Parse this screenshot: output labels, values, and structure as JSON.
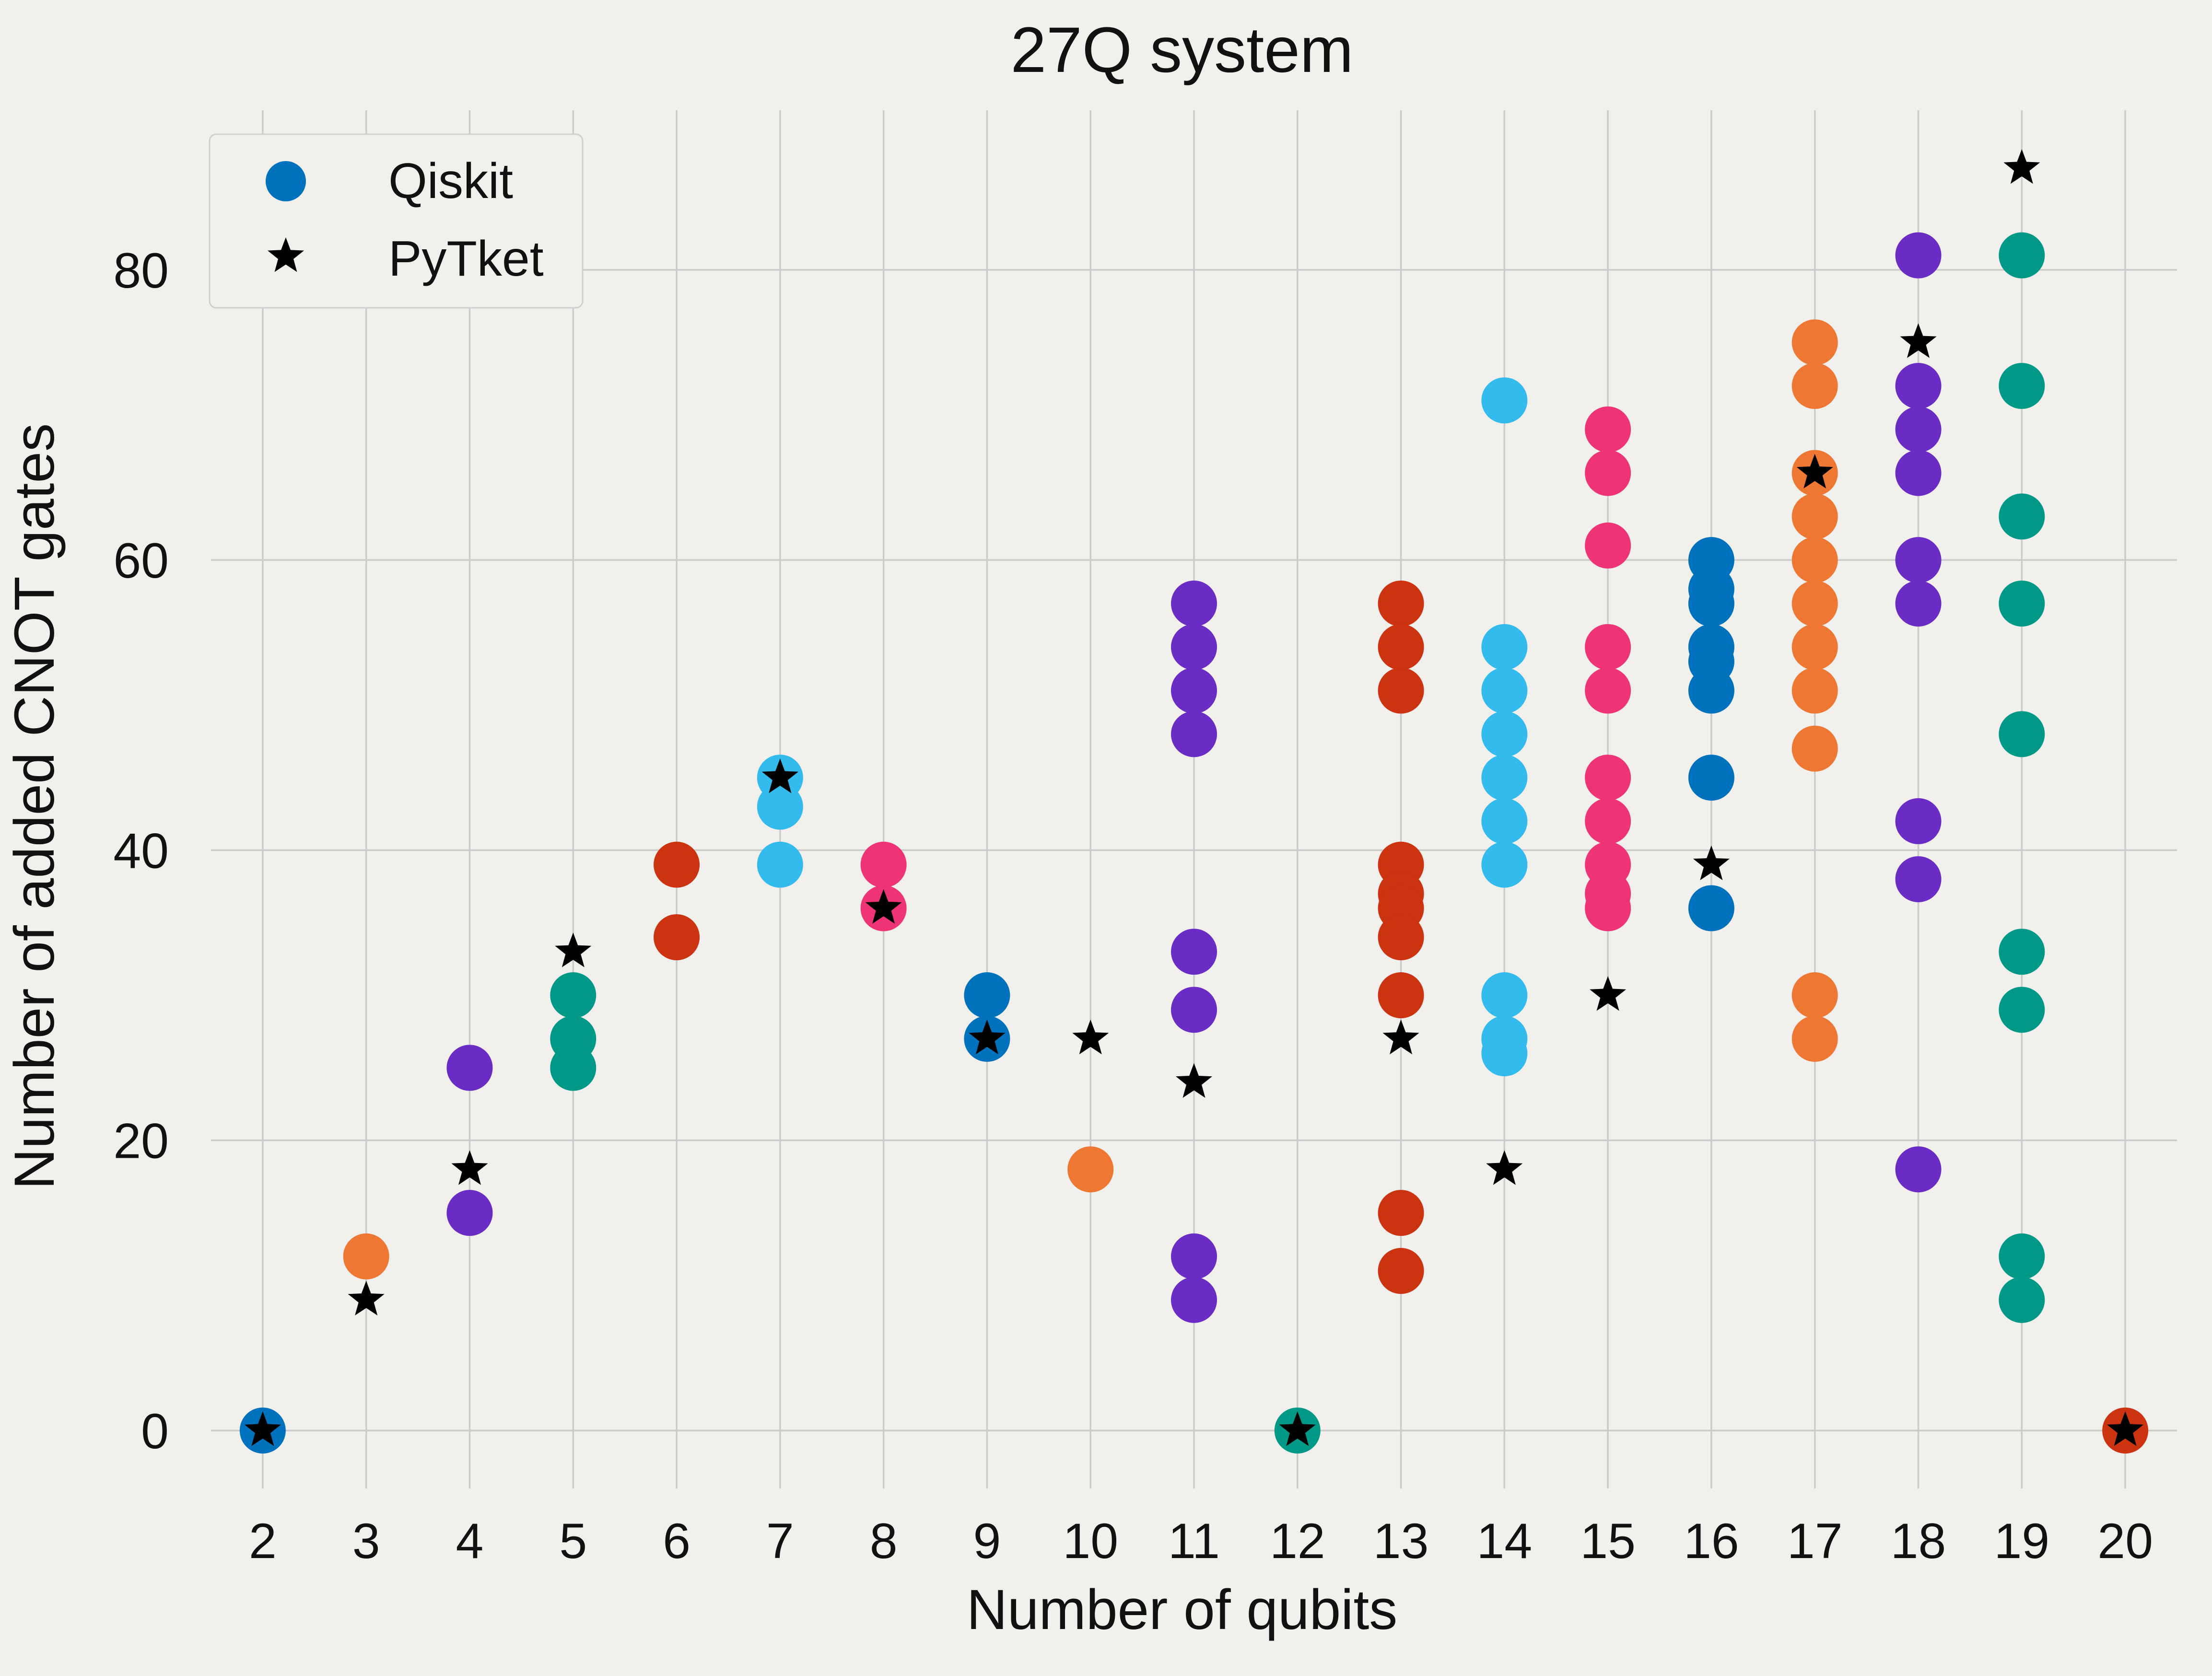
{
  "chart_data": {
    "type": "scatter",
    "title": "27Q system",
    "xlabel": "Number of qubits",
    "ylabel": "Number of added CNOT gates",
    "xlim": [
      1.5,
      20.5
    ],
    "ylim": [
      -4,
      91
    ],
    "xticks": [
      2,
      3,
      4,
      5,
      6,
      7,
      8,
      9,
      10,
      11,
      12,
      13,
      14,
      15,
      16,
      17,
      18,
      19,
      20
    ],
    "xtick_labels": [
      "2",
      "3",
      "4",
      "5",
      "6",
      "7",
      "8",
      "9",
      "10",
      "11",
      "12",
      "13",
      "14",
      "15",
      "16",
      "17",
      "18",
      "19",
      "20"
    ],
    "yticks": [
      0,
      20,
      40,
      60,
      80
    ],
    "ytick_labels": [
      "0",
      "20",
      "40",
      "60",
      "80"
    ],
    "grid": true,
    "legend_position": "top-left",
    "legend": [
      {
        "label": "Qiskit",
        "marker": "circle",
        "color": "#0072bd"
      },
      {
        "label": "PyTket",
        "marker": "star",
        "color": "#000000"
      }
    ],
    "series": [
      {
        "name": "Qiskit",
        "marker": "circle",
        "groups": [
          {
            "x": 2,
            "color": "#0072bd",
            "values": [
              0
            ]
          },
          {
            "x": 3,
            "color": "#ee7733",
            "values": [
              12
            ]
          },
          {
            "x": 4,
            "color": "#6a2cc4",
            "values": [
              25,
              15
            ]
          },
          {
            "x": 5,
            "color": "#009988",
            "values": [
              30,
              27,
              25
            ]
          },
          {
            "x": 6,
            "color": "#cc3311",
            "values": [
              39,
              34
            ]
          },
          {
            "x": 7,
            "color": "#33bbee",
            "values": [
              45,
              43,
              39
            ]
          },
          {
            "x": 8,
            "color": "#ee3377",
            "values": [
              39,
              36
            ]
          },
          {
            "x": 9,
            "color": "#0072bd",
            "values": [
              30,
              27
            ]
          },
          {
            "x": 10,
            "color": "#ee7733",
            "values": [
              18
            ]
          },
          {
            "x": 11,
            "color": "#6a2cc4",
            "values": [
              57,
              54,
              51,
              48,
              33,
              29,
              12,
              9
            ]
          },
          {
            "x": 12,
            "color": "#009988",
            "values": [
              0
            ]
          },
          {
            "x": 13,
            "color": "#cc3311",
            "values": [
              57,
              54,
              51,
              39,
              37,
              36,
              34,
              30,
              15,
              11
            ]
          },
          {
            "x": 14,
            "color": "#33bbee",
            "values": [
              71,
              54,
              51,
              48,
              45,
              42,
              39,
              30,
              27,
              26
            ]
          },
          {
            "x": 15,
            "color": "#ee3377",
            "values": [
              69,
              66,
              61,
              54,
              51,
              45,
              42,
              39,
              37,
              36
            ]
          },
          {
            "x": 16,
            "color": "#0072bd",
            "values": [
              60,
              58,
              57,
              54,
              53,
              51,
              45,
              36
            ]
          },
          {
            "x": 17,
            "color": "#ee7733",
            "values": [
              75,
              72,
              66,
              63,
              60,
              57,
              54,
              51,
              47,
              30,
              27
            ]
          },
          {
            "x": 18,
            "color": "#6a2cc4",
            "values": [
              81,
              72,
              69,
              66,
              60,
              57,
              42,
              38,
              18
            ]
          },
          {
            "x": 19,
            "color": "#009988",
            "values": [
              81,
              72,
              63,
              57,
              48,
              33,
              29,
              12,
              9
            ]
          },
          {
            "x": 20,
            "color": "#cc3311",
            "values": [
              0
            ]
          }
        ]
      },
      {
        "name": "PyTket",
        "marker": "star",
        "color": "#000000",
        "x": [
          2,
          3,
          4,
          5,
          7,
          8,
          9,
          10,
          11,
          12,
          13,
          14,
          15,
          16,
          17,
          18,
          19,
          20
        ],
        "y": [
          0,
          9,
          18,
          33,
          45,
          36,
          27,
          27,
          24,
          0,
          27,
          18,
          30,
          39,
          66,
          75,
          87,
          0
        ]
      }
    ]
  }
}
